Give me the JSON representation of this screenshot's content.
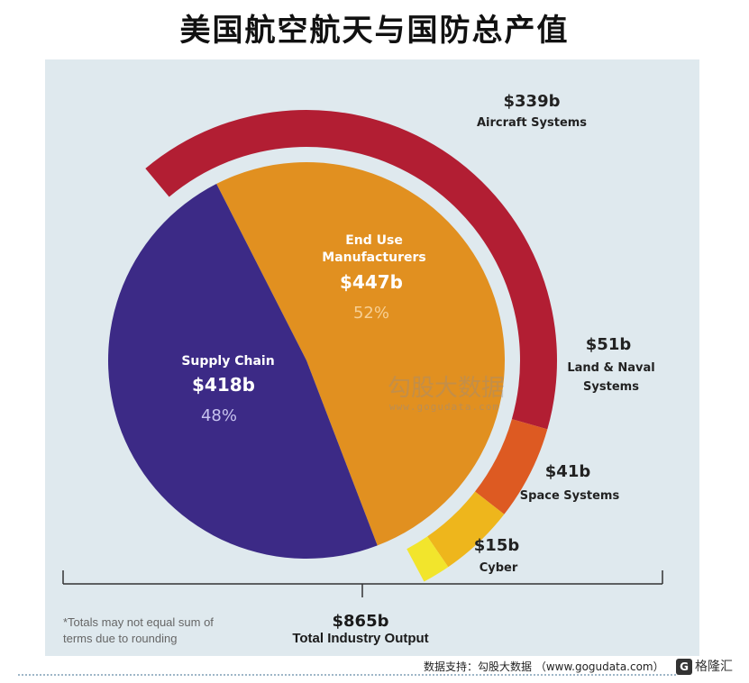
{
  "title": "美国航空航天与国防总产值",
  "chart_data": {
    "type": "pie",
    "inner": {
      "slices": [
        {
          "label": "End Use Manufacturers",
          "label_line1": "End Use",
          "label_line2": "Manufacturers",
          "value_text": "$447b",
          "value": 447,
          "percent_text": "52%",
          "percent": 52,
          "color": "#e19020"
        },
        {
          "label": "Supply Chain",
          "value_text": "$418b",
          "value": 418,
          "percent_text": "48%",
          "percent": 48,
          "color": "#3c2a86"
        }
      ]
    },
    "outer_ring": {
      "segments": [
        {
          "label": "Aircraft Systems",
          "value_text": "$339b",
          "value": 339,
          "color": "#b21e33"
        },
        {
          "label": "Land & Naval Systems",
          "label_line1": "Land & Naval",
          "label_line2": "Systems",
          "value_text": "$51b",
          "value": 51,
          "color": "#dd5a22"
        },
        {
          "label": "Space Systems",
          "value_text": "$41b",
          "value": 41,
          "color": "#eeb61c"
        },
        {
          "label": "Cyber",
          "value_text": "$15b",
          "value": 15,
          "color": "#f2e52c"
        }
      ]
    },
    "total": {
      "value_text": "$865b",
      "value": 865,
      "label": "Total Industry Output"
    },
    "footnote": "*Totals may not equal sum of terms due to rounding"
  },
  "watermark": {
    "cn": "勾股大数据",
    "url": "www.gogudata.com"
  },
  "source": "数据支持：勾股大数据 （www.gogudata.com）",
  "brand": {
    "icon": "G",
    "text": "格隆汇"
  }
}
